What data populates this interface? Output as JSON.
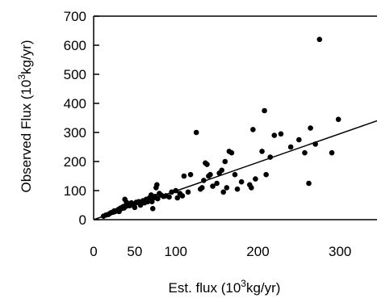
{
  "chart_data": {
    "type": "scatter",
    "xlabel": {
      "pre": "Est. flux (10",
      "sup": "3",
      "post": "kg/yr)"
    },
    "ylabel": {
      "pre": "Observed  Flux (10",
      "sup": "3",
      "post": "kg/yr)"
    },
    "xlim": [
      0,
      345
    ],
    "ylim": [
      0,
      700
    ],
    "xticks": [
      0,
      50,
      100,
      200,
      300
    ],
    "xtick_labels": [
      "0",
      "50",
      "100",
      "200",
      "300"
    ],
    "yticks": [
      0,
      100,
      200,
      300,
      400,
      500,
      600,
      700
    ],
    "ytick_labels": [
      "0",
      "100",
      "200",
      "300",
      "400",
      "500",
      "600",
      "700"
    ],
    "grid": false,
    "legend": "none",
    "fit_line": {
      "x": [
        0,
        345
      ],
      "y": [
        0,
        340
      ]
    },
    "series": [
      {
        "points": [
          [
            12,
            12
          ],
          [
            15,
            16
          ],
          [
            18,
            18
          ],
          [
            20,
            22
          ],
          [
            22,
            25
          ],
          [
            24,
            26
          ],
          [
            25,
            30
          ],
          [
            26,
            28
          ],
          [
            28,
            30
          ],
          [
            29,
            32
          ],
          [
            30,
            35
          ],
          [
            31,
            28
          ],
          [
            32,
            38
          ],
          [
            33,
            40
          ],
          [
            34,
            38
          ],
          [
            35,
            42
          ],
          [
            36,
            45
          ],
          [
            37,
            40
          ],
          [
            38,
            70
          ],
          [
            39,
            48
          ],
          [
            40,
            60
          ],
          [
            42,
            50
          ],
          [
            44,
            48
          ],
          [
            45,
            55
          ],
          [
            46,
            58
          ],
          [
            48,
            52
          ],
          [
            50,
            42
          ],
          [
            52,
            60
          ],
          [
            55,
            62
          ],
          [
            57,
            50
          ],
          [
            58,
            55
          ],
          [
            60,
            65
          ],
          [
            62,
            58
          ],
          [
            64,
            70
          ],
          [
            66,
            62
          ],
          [
            68,
            75
          ],
          [
            70,
            85
          ],
          [
            71,
            62
          ],
          [
            72,
            38
          ],
          [
            73,
            75
          ],
          [
            75,
            80
          ],
          [
            76,
            110
          ],
          [
            77,
            120
          ],
          [
            78,
            72
          ],
          [
            80,
            90
          ],
          [
            82,
            85
          ],
          [
            85,
            80
          ],
          [
            88,
            82
          ],
          [
            92,
            78
          ],
          [
            95,
            95
          ],
          [
            100,
            100
          ],
          [
            102,
            75
          ],
          [
            105,
            90
          ],
          [
            108,
            82
          ],
          [
            110,
            150
          ],
          [
            115,
            95
          ],
          [
            118,
            155
          ],
          [
            125,
            300
          ],
          [
            130,
            105
          ],
          [
            132,
            110
          ],
          [
            134,
            135
          ],
          [
            136,
            195
          ],
          [
            138,
            190
          ],
          [
            140,
            150
          ],
          [
            142,
            155
          ],
          [
            145,
            115
          ],
          [
            150,
            125
          ],
          [
            153,
            160
          ],
          [
            156,
            170
          ],
          [
            158,
            95
          ],
          [
            160,
            200
          ],
          [
            162,
            110
          ],
          [
            165,
            235
          ],
          [
            168,
            230
          ],
          [
            172,
            155
          ],
          [
            175,
            105
          ],
          [
            180,
            130
          ],
          [
            190,
            120
          ],
          [
            192,
            110
          ],
          [
            194,
            310
          ],
          [
            197,
            140
          ],
          [
            205,
            235
          ],
          [
            208,
            375
          ],
          [
            210,
            155
          ],
          [
            215,
            215
          ],
          [
            220,
            290
          ],
          [
            228,
            295
          ],
          [
            240,
            250
          ],
          [
            250,
            275
          ],
          [
            257,
            230
          ],
          [
            262,
            125
          ],
          [
            264,
            315
          ],
          [
            270,
            260
          ],
          [
            275,
            620
          ],
          [
            290,
            230
          ],
          [
            298,
            345
          ]
        ]
      }
    ]
  }
}
